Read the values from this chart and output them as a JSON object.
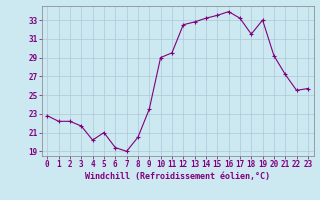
{
  "x": [
    0,
    1,
    2,
    3,
    4,
    5,
    6,
    7,
    8,
    9,
    10,
    11,
    12,
    13,
    14,
    15,
    16,
    17,
    18,
    19,
    20,
    21,
    22,
    23
  ],
  "y": [
    22.8,
    22.2,
    22.2,
    21.7,
    20.2,
    21.0,
    19.4,
    19.0,
    20.5,
    23.5,
    29.0,
    29.5,
    32.5,
    32.8,
    33.2,
    33.5,
    33.9,
    33.2,
    31.5,
    33.0,
    29.2,
    27.2,
    25.5,
    25.7
  ],
  "line_color": "#800080",
  "marker": "+",
  "marker_size": 4,
  "bg_color": "#cce8f0",
  "grid_color": "#b0c8d8",
  "xlabel": "Windchill (Refroidissement éolien,°C)",
  "xlabel_color": "#800080",
  "tick_color": "#800080",
  "axis_color": "#808080",
  "ylim": [
    18.5,
    34.5
  ],
  "xlim": [
    -0.5,
    23.5
  ],
  "yticks": [
    19,
    21,
    23,
    25,
    27,
    29,
    31,
    33
  ],
  "xticks": [
    0,
    1,
    2,
    3,
    4,
    5,
    6,
    7,
    8,
    9,
    10,
    11,
    12,
    13,
    14,
    15,
    16,
    17,
    18,
    19,
    20,
    21,
    22,
    23
  ],
  "xlabel_fontsize": 6.0,
  "tick_fontsize": 5.5
}
